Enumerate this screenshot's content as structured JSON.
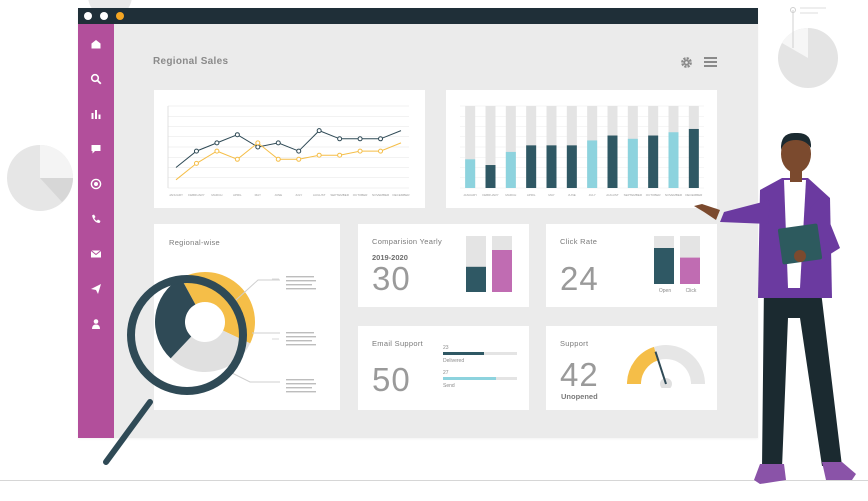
{
  "dashboard": {
    "title": "Regional Sales"
  },
  "cards": {
    "regional": {
      "label": "Regional-wise"
    },
    "comparison": {
      "label": "Comparision Yearly",
      "period": "2019-2020",
      "value": "30"
    },
    "click_rate": {
      "label": "Click Rate",
      "value": "24",
      "bar_labels": [
        "Open",
        "Click"
      ]
    },
    "email": {
      "label": "Email Support",
      "value": "50",
      "rows": [
        {
          "count": "23",
          "name": "Delivered",
          "level": 0.55
        },
        {
          "count": "27",
          "name": "Send",
          "level": 0.72
        }
      ]
    },
    "support": {
      "label": "Support",
      "value": "42",
      "sublabel": "Unopened",
      "gauge_level": 0.4
    }
  },
  "chart_data": [
    {
      "type": "line",
      "x": [
        "JANUARY",
        "FEBRUARY",
        "MARCH",
        "APRIL",
        "MAY",
        "JUNE",
        "JULY",
        "AUGUST",
        "SEPTEMBER",
        "OCTOBER",
        "NOVEMBER",
        "DECEMBER"
      ],
      "series": [
        {
          "values": [
            2.5,
            4.5,
            5.5,
            6.5,
            5.0,
            5.5,
            4.5,
            7.0,
            6.0,
            6.0,
            6.0,
            7.0
          ],
          "color": "#2f4a56"
        },
        {
          "values": [
            1.0,
            3.0,
            4.5,
            3.5,
            5.5,
            3.5,
            3.5,
            4.0,
            4.0,
            4.5,
            4.5,
            5.5
          ],
          "color": "#f5be48"
        }
      ],
      "ylim": [
        0,
        10
      ],
      "grid": true
    },
    {
      "type": "bar",
      "categories": [
        "JANUARY",
        "FEBRUARY",
        "MARCH",
        "APRIL",
        "MAY",
        "JUNE",
        "JULY",
        "AUGUST",
        "SEPTEMBER",
        "OCTOBER",
        "NOVEMBER",
        "DECEMBER"
      ],
      "values": [
        35,
        28,
        44,
        52,
        52,
        52,
        58,
        64,
        60,
        64,
        68,
        72
      ],
      "colors": [
        "#8dd3de",
        "#2f5864",
        "#8dd3de",
        "#2f5864",
        "#2f5864",
        "#2f5864",
        "#8dd3de",
        "#2f5864",
        "#8dd3de",
        "#2f5864",
        "#8dd3de",
        "#2f5864"
      ],
      "ylim": [
        0,
        100
      ],
      "grid": true
    },
    {
      "type": "pie",
      "values": [
        40,
        30,
        30
      ],
      "colors": [
        "#f5be48",
        "#e0e0e0",
        "#2f4a56"
      ]
    },
    {
      "type": "bar",
      "categories": [
        "2019",
        "2020"
      ],
      "values": [
        45,
        75
      ],
      "colors": [
        "#2f5864",
        "#c06cb2"
      ],
      "ylim": [
        0,
        100
      ]
    },
    {
      "type": "bar",
      "categories": [
        "Open",
        "Click"
      ],
      "values": [
        75,
        55
      ],
      "colors": [
        "#2f5864",
        "#c06cb2"
      ],
      "ylim": [
        0,
        100
      ]
    }
  ],
  "colors": {
    "sidebar": "#b24f9b",
    "titlebar": "#1f2f38",
    "dark_teal": "#2f5864",
    "light_teal": "#8dd3de",
    "yellow": "#f5be48",
    "magenta": "#c06cb2"
  },
  "icons": [
    "home-icon",
    "search-icon",
    "bar-chart-icon",
    "chat-icon",
    "target-icon",
    "phone-icon",
    "mail-icon",
    "send-icon",
    "user-icon",
    "gear-icon",
    "menu-icon",
    "magnifier-icon"
  ]
}
